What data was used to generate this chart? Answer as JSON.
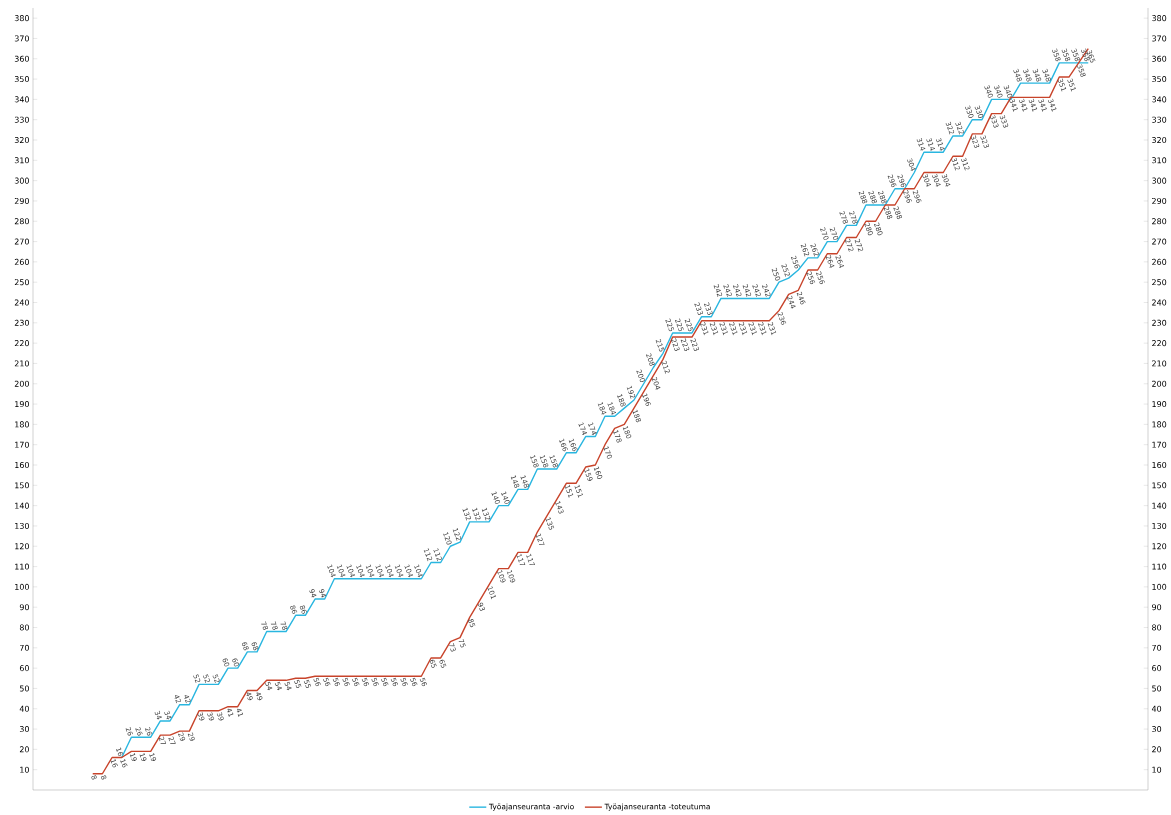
{
  "chart_data": {
    "type": "line",
    "categories": [
      null,
      null,
      null,
      null,
      null,
      null,
      null,
      null,
      null,
      null,
      null,
      null,
      null,
      null,
      null,
      null,
      null,
      null,
      null,
      null,
      null,
      null,
      null,
      null,
      null,
      null,
      null,
      null,
      null,
      null,
      null,
      null,
      null,
      null,
      null,
      null,
      null,
      null,
      null,
      null,
      null,
      null,
      null,
      null,
      null,
      null,
      null,
      null,
      null,
      null,
      null,
      null,
      null,
      null,
      null,
      null,
      null,
      null,
      null,
      null,
      null,
      null,
      null,
      null,
      null,
      null,
      null,
      null,
      null,
      null,
      null,
      null,
      null,
      null,
      null,
      null,
      null,
      null,
      null,
      null,
      null,
      null,
      null,
      null,
      null,
      null,
      null,
      null,
      null,
      null,
      null,
      null,
      null,
      null,
      null,
      null,
      null,
      null,
      null,
      null,
      null,
      null,
      null,
      null
    ],
    "series": [
      {
        "name": "Työajanseuranta -arvio",
        "color": "#29b6e0",
        "values": [
          null,
          null,
          null,
          16,
          26,
          26,
          26,
          34,
          34,
          42,
          42,
          52,
          52,
          52,
          60,
          60,
          68,
          68,
          78,
          78,
          78,
          86,
          86,
          94,
          94,
          104,
          104,
          104,
          104,
          104,
          104,
          104,
          104,
          104,
          104,
          112,
          112,
          120,
          122,
          132,
          132,
          132,
          140,
          140,
          148,
          148,
          158,
          158,
          158,
          166,
          166,
          174,
          174,
          184,
          184,
          188,
          192,
          200,
          208,
          215,
          225,
          225,
          225,
          233,
          233,
          242,
          242,
          242,
          242,
          242,
          242,
          250,
          252,
          256,
          262,
          262,
          270,
          270,
          278,
          278,
          288,
          288,
          288,
          296,
          296,
          304,
          314,
          314,
          314,
          322,
          322,
          330,
          330,
          340,
          340,
          340,
          348,
          348,
          348,
          348,
          358,
          358,
          358,
          358
        ]
      },
      {
        "name": "Työajanseuranta -toteutuma",
        "color": "#c8432a",
        "values": [
          8,
          8,
          16,
          16,
          19,
          19,
          19,
          27,
          27,
          29,
          29,
          39,
          39,
          39,
          41,
          41,
          49,
          49,
          54,
          54,
          54,
          55,
          55,
          56,
          56,
          56,
          56,
          56,
          56,
          56,
          56,
          56,
          56,
          56,
          56,
          65,
          65,
          73,
          75,
          85,
          93,
          101,
          109,
          109,
          117,
          117,
          127,
          135,
          143,
          151,
          151,
          159,
          160,
          170,
          178,
          180,
          188,
          196,
          204,
          212,
          223,
          223,
          223,
          231,
          231,
          231,
          231,
          231,
          231,
          231,
          231,
          236,
          244,
          246,
          256,
          256,
          264,
          264,
          272,
          272,
          280,
          280,
          288,
          288,
          296,
          296,
          304,
          304,
          304,
          312,
          312,
          323,
          323,
          333,
          333,
          341,
          341,
          341,
          341,
          341,
          351,
          351,
          358,
          365
        ]
      }
    ],
    "ylim": [
      0,
      385
    ],
    "yticks": [
      10,
      20,
      30,
      40,
      50,
      60,
      70,
      80,
      90,
      100,
      110,
      120,
      130,
      140,
      150,
      160,
      170,
      180,
      190,
      200,
      210,
      220,
      230,
      240,
      250,
      260,
      270,
      280,
      290,
      300,
      310,
      320,
      330,
      340,
      350,
      360,
      370,
      380
    ],
    "y2lim": [
      0,
      385
    ],
    "y2ticks": [
      10,
      20,
      30,
      40,
      50,
      60,
      70,
      80,
      90,
      100,
      110,
      120,
      130,
      140,
      150,
      160,
      170,
      180,
      190,
      200,
      210,
      220,
      230,
      240,
      250,
      260,
      270,
      280,
      290,
      300,
      310,
      320,
      330,
      340,
      350,
      360,
      370,
      380
    ],
    "data_labels": true,
    "legend": "bottom",
    "grid": false,
    "marker": "none",
    "line_style": "solid"
  }
}
